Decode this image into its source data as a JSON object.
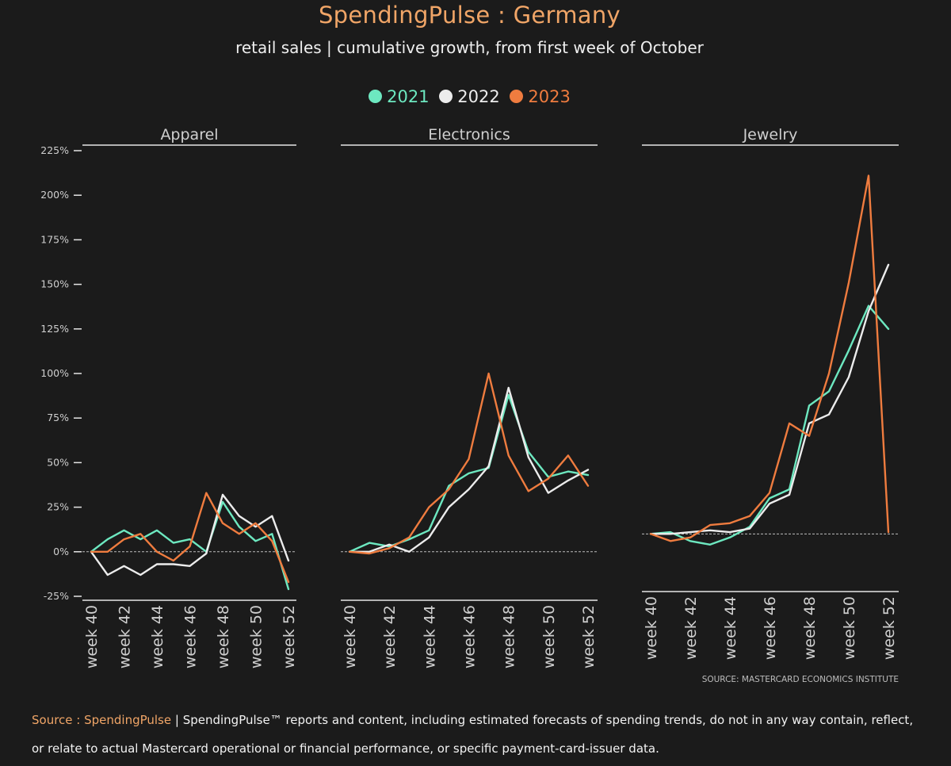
{
  "header": {
    "title": "SpendingPulse : Germany",
    "subtitle": "retail sales | cumulative growth, from first week of October"
  },
  "colors": {
    "2021": "#6de8c0",
    "2022": "#ececec",
    "2023": "#ef7c3f",
    "background": "#1b1b1b",
    "accent": "#f0a567"
  },
  "legend": [
    {
      "label": "2021",
      "color": "#6de8c0"
    },
    {
      "label": "2022",
      "color": "#ececec"
    },
    {
      "label": "2023",
      "color": "#ef7c3f"
    }
  ],
  "chart_data": {
    "type": "line",
    "title": "retail sales | cumulative growth, from first week of October",
    "y_ticks": [
      "225%",
      "200%",
      "175%",
      "150%",
      "125%",
      "100%",
      "75%",
      "50%",
      "25%",
      "0%",
      "-25%"
    ],
    "y_tick_values": [
      225,
      200,
      175,
      150,
      125,
      100,
      75,
      50,
      25,
      0,
      -25
    ],
    "x_tick_labels": [
      "week 40",
      "week 42",
      "week 44",
      "week 46",
      "week 48",
      "week 50",
      "week 52"
    ],
    "x_weeks": [
      40,
      41,
      42,
      43,
      44,
      45,
      46,
      47,
      48,
      49,
      50,
      51,
      52
    ],
    "source_note": "SOURCE: MASTERCARD ECONOMICS INSTITUTE",
    "panels": [
      {
        "name": "Apparel",
        "ylim": [
          -28,
          225
        ],
        "series": [
          {
            "name": "2021",
            "values": [
              0,
              7,
              12,
              7,
              12,
              5,
              7,
              0,
              28,
              14,
              6,
              10,
              -21
            ]
          },
          {
            "name": "2022",
            "values": [
              0,
              -13,
              -8,
              -13,
              -7,
              -7,
              -8,
              -1,
              32,
              20,
              14,
              20,
              -5
            ]
          },
          {
            "name": "2023",
            "values": [
              0,
              0,
              7,
              10,
              0,
              -5,
              3,
              33,
              16,
              10,
              16,
              6,
              -17
            ]
          }
        ]
      },
      {
        "name": "Electronics",
        "ylim": [
          -28,
          225
        ],
        "series": [
          {
            "name": "2021",
            "values": [
              0,
              5,
              3,
              7,
              12,
              37,
              44,
              47,
              88,
              56,
              42,
              45,
              43
            ]
          },
          {
            "name": "2022",
            "values": [
              0,
              0,
              4,
              0,
              8,
              25,
              35,
              48,
              92,
              53,
              33,
              40,
              46
            ]
          },
          {
            "name": "2023",
            "values": [
              0,
              -1,
              2,
              8,
              25,
              35,
              52,
              100,
              54,
              34,
              41,
              54,
              37
            ]
          }
        ]
      },
      {
        "name": "Jewelry",
        "ylim": [
          -23,
          225
        ],
        "series": [
          {
            "name": "2021",
            "values": [
              0,
              1,
              -4,
              -6,
              -2,
              4,
              20,
              25,
              72,
              80,
              103,
              128,
              115
            ]
          },
          {
            "name": "2022",
            "values": [
              0,
              0,
              1,
              2,
              1,
              3,
              17,
              22,
              62,
              67,
              88,
              125,
              151
            ]
          },
          {
            "name": "2023",
            "values": [
              0,
              -4,
              -2,
              5,
              6,
              10,
              23,
              62,
              55,
              90,
              141,
              201,
              1
            ]
          }
        ]
      }
    ]
  },
  "footer": {
    "source_label": "Source : SpendingPulse",
    "disclaimer": " | SpendingPulse™ reports and content, including estimated forecasts of spending trends, do not in any way contain, reflect, or relate to actual Mastercard operational or financial performance, or specific payment-card-issuer data."
  }
}
